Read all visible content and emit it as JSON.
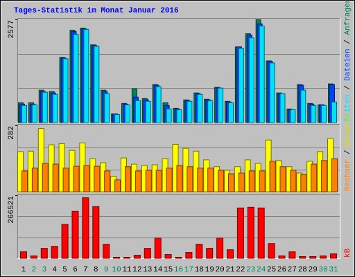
{
  "chart_data": [
    {
      "type": "bar",
      "title": "Tages-Statistik im Monat Januar 2016",
      "ylim": [
        0,
        2577
      ],
      "yticks": [
        2577
      ],
      "series": [
        {
          "name": "Anfragen",
          "color": "#00805c",
          "values": [
            505,
            505,
            818,
            783,
            1637,
            2316,
            2368,
            1950,
            818,
            226,
            487,
            853,
            609,
            958,
            505,
            366,
            575,
            749,
            592,
            888,
            540,
            1898,
            2228,
            2577,
            1549,
            749,
            348,
            958,
            487,
            453,
            975
          ]
        },
        {
          "name": "Dateien",
          "color": "#0040ff",
          "values": [
            470,
            470,
            783,
            749,
            1619,
            2281,
            2350,
            1933,
            783,
            226,
            470,
            644,
            575,
            940,
            435,
            348,
            557,
            731,
            575,
            871,
            522,
            1898,
            2194,
            2472,
            1532,
            731,
            331,
            940,
            470,
            453,
            958
          ]
        },
        {
          "name": "Seiten",
          "color": "#00e0ff",
          "values": [
            435,
            453,
            766,
            714,
            1602,
            2211,
            2333,
            1915,
            731,
            209,
            453,
            557,
            540,
            905,
            348,
            331,
            540,
            714,
            557,
            871,
            505,
            1863,
            2124,
            2420,
            1497,
            731,
            331,
            818,
            435,
            435,
            522
          ]
        }
      ]
    },
    {
      "type": "bar",
      "ylim": [
        0,
        282
      ],
      "yticks": [
        282
      ],
      "series": [
        {
          "name": "Besuche",
          "color": "#ffff00",
          "values": [
            172,
            174,
            270,
            201,
            206,
            177,
            209,
            142,
            125,
            67,
            145,
            119,
            113,
            116,
            142,
            203,
            186,
            174,
            137,
            108,
            93,
            108,
            137,
            122,
            221,
            134,
            108,
            81,
            131,
            172,
            227
          ]
        },
        {
          "name": "Rechner",
          "color": "#ff8000",
          "values": [
            90,
            102,
            122,
            119,
            102,
            110,
            113,
            110,
            90,
            52,
            108,
            90,
            93,
            93,
            102,
            113,
            108,
            102,
            102,
            93,
            78,
            81,
            90,
            90,
            131,
            108,
            93,
            76,
            119,
            134,
            142
          ]
        }
      ]
    },
    {
      "type": "bar",
      "ylim": [
        0,
        266521
      ],
      "yticks": [
        266521
      ],
      "categories": [
        "1",
        "2",
        "3",
        "4",
        "5",
        "6",
        "7",
        "8",
        "9",
        "10",
        "11",
        "12",
        "13",
        "14",
        "15",
        "16",
        "17",
        "18",
        "19",
        "20",
        "21",
        "22",
        "23",
        "24",
        "25",
        "26",
        "27",
        "28",
        "29",
        "30",
        "31"
      ],
      "category_colors": [
        "#000000",
        "#00805c",
        "#00805c",
        "#000000",
        "#000000",
        "#000000",
        "#000000",
        "#000000",
        "#00805c",
        "#00805c",
        "#000000",
        "#000000",
        "#000000",
        "#000000",
        "#000000",
        "#00805c",
        "#00805c",
        "#000000",
        "#000000",
        "#000000",
        "#000000",
        "#000000",
        "#00805c",
        "#00805c",
        "#000000",
        "#000000",
        "#000000",
        "#000000",
        "#000000",
        "#00805c",
        "#00805c"
      ],
      "series": [
        {
          "name": "kB",
          "color": "#ff0000",
          "values": [
            28970,
            11588,
            43455,
            52146,
            144850,
            199893,
            257833,
            220172,
            60837,
            5794,
            5794,
            14485,
            43455,
            86910,
            17382,
            5794,
            26073,
            60837,
            43455,
            86910,
            37661,
            214378,
            217275,
            214378,
            63734,
            11588,
            28970,
            8691,
            8691,
            11588,
            20279
          ]
        }
      ]
    }
  ]
}
